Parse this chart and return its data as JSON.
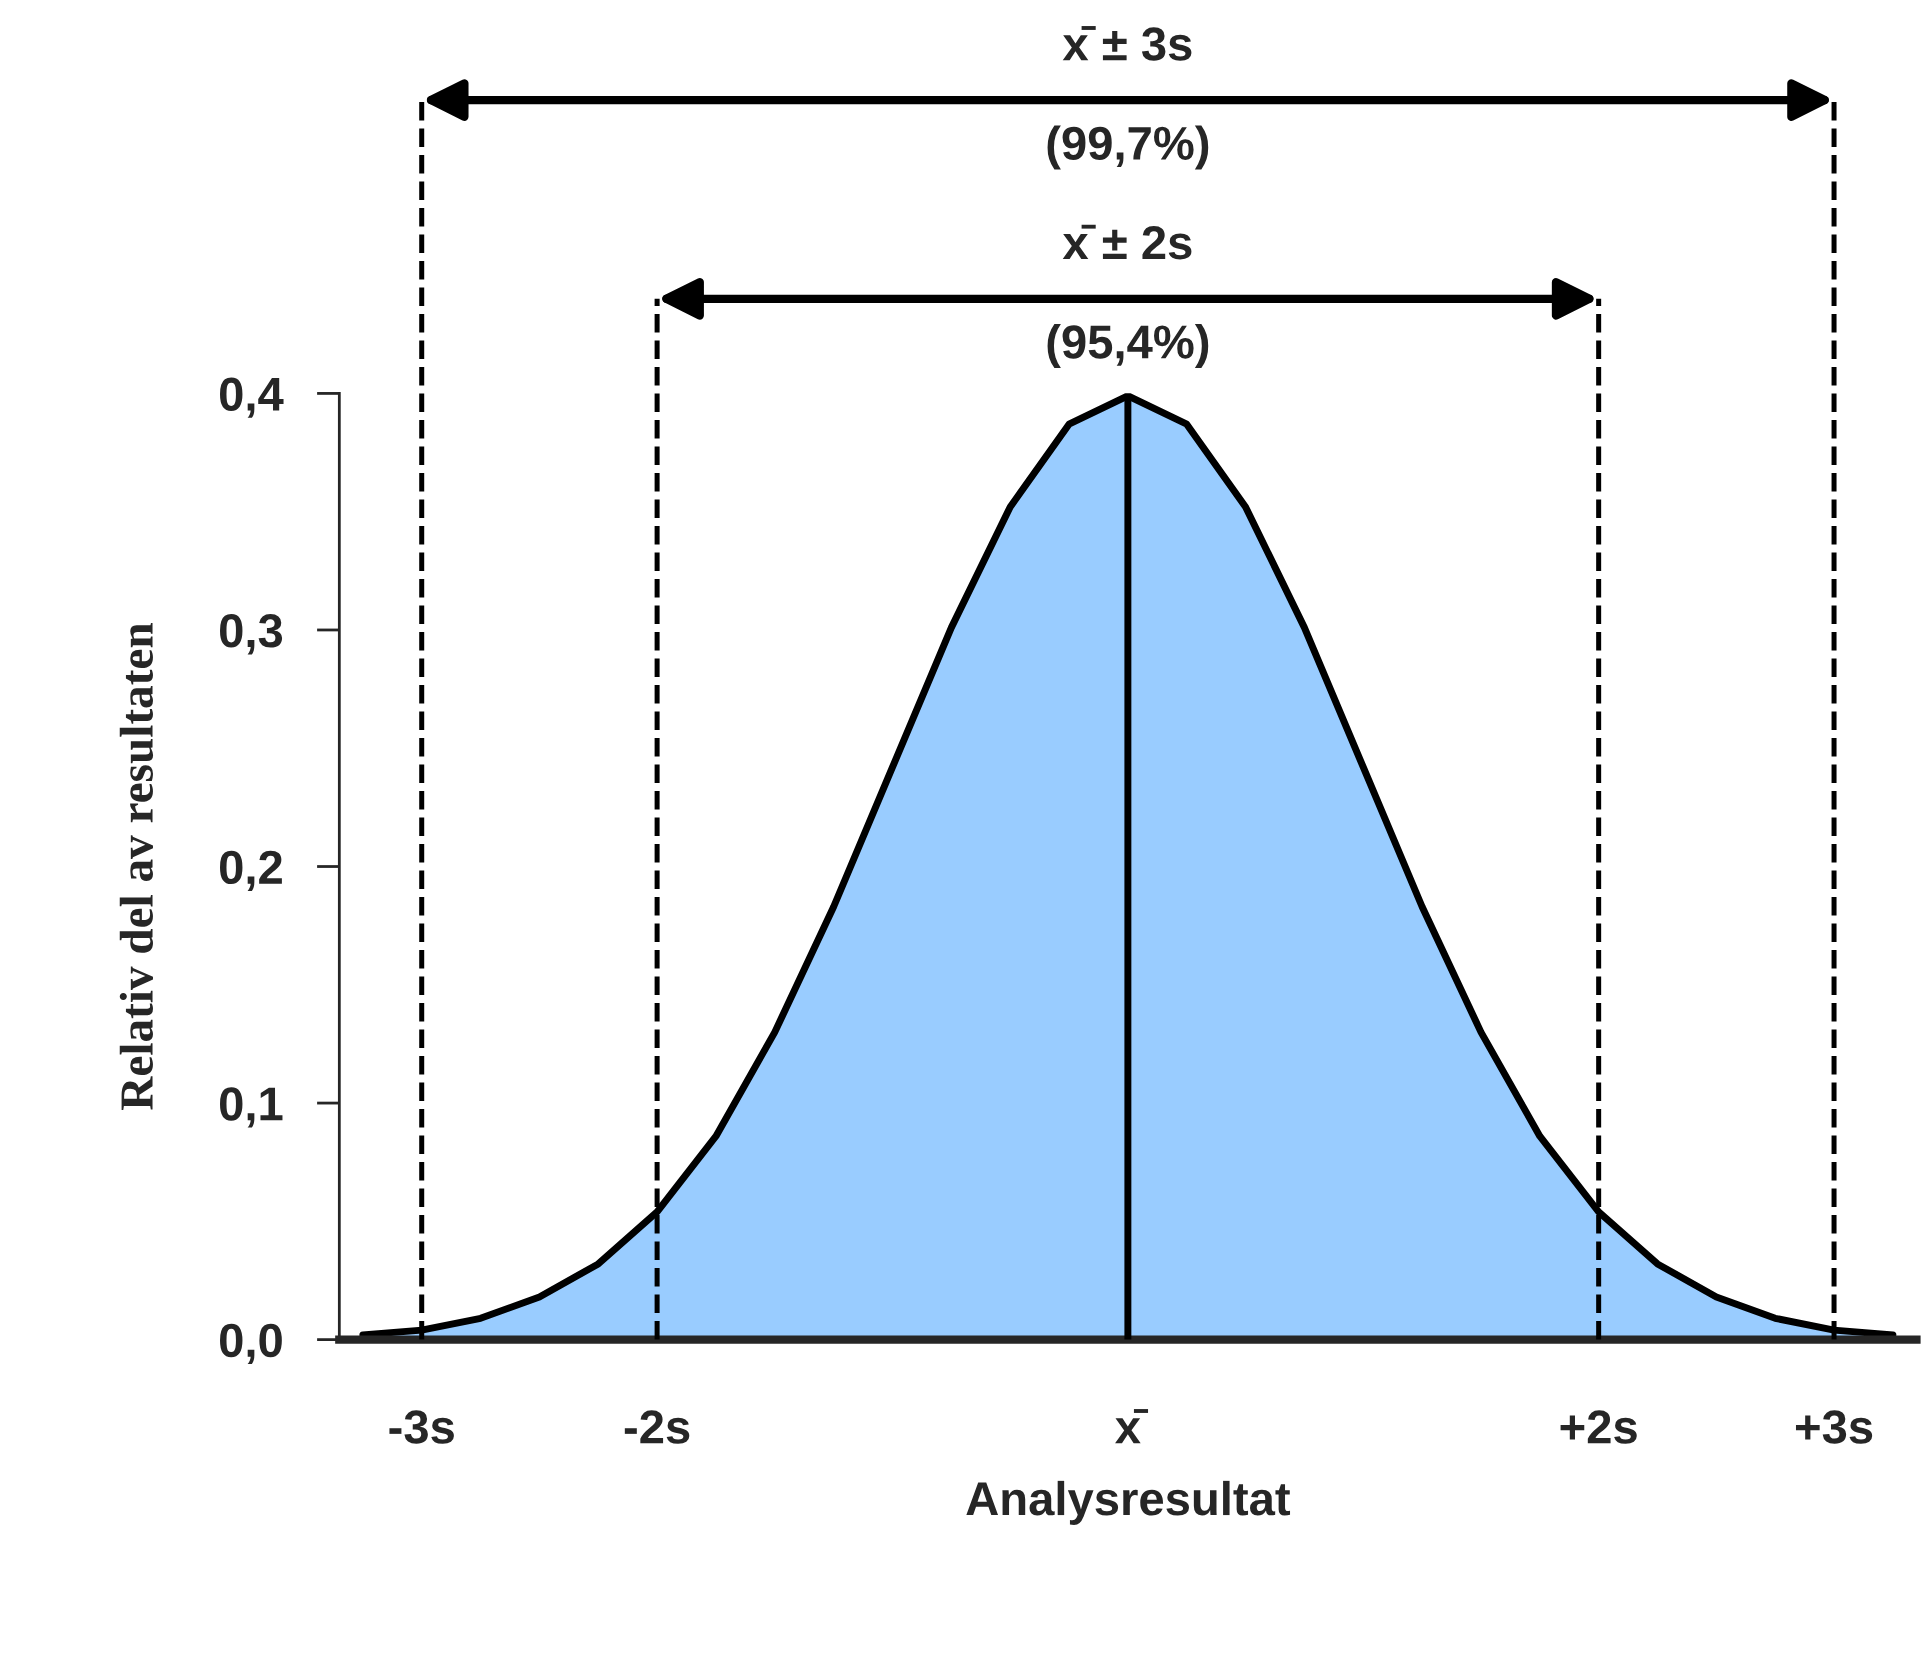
{
  "chart_data": {
    "type": "area",
    "xlabel": "Analysresultat",
    "ylabel": "Relativ del av resultaten",
    "x": [
      -3.25,
      -3.0,
      -2.75,
      -2.5,
      -2.25,
      -2.0,
      -1.75,
      -1.5,
      -1.25,
      -1.0,
      -0.75,
      -0.5,
      -0.25,
      0.0,
      0.25,
      0.5,
      0.75,
      1.0,
      1.25,
      1.5,
      1.75,
      2.0,
      2.25,
      2.5,
      2.75,
      3.0,
      3.25
    ],
    "series": [
      {
        "color": "#99ccff",
        "values": [
          0.002,
          0.004,
          0.009,
          0.018,
          0.032,
          0.054,
          0.086,
          0.13,
          0.183,
          0.242,
          0.301,
          0.352,
          0.387,
          0.399,
          0.387,
          0.352,
          0.301,
          0.242,
          0.183,
          0.13,
          0.086,
          0.054,
          0.032,
          0.018,
          0.009,
          0.004,
          0.002
        ]
      }
    ],
    "xlim": [
      -3.35,
      3.35
    ],
    "xticks": [
      {
        "value": -3,
        "label": "-3s"
      },
      {
        "value": -2,
        "label": "-2s"
      },
      {
        "value": 0,
        "label": "x̄"
      },
      {
        "value": 2,
        "label": "+2s"
      },
      {
        "value": 3,
        "label": "+3s"
      }
    ],
    "ylim": [
      0,
      0.4
    ],
    "yticks": [
      {
        "value": 0,
        "label": "0,0"
      },
      {
        "value": 0.1,
        "label": "0,1"
      },
      {
        "value": 0.2,
        "label": "0,2"
      },
      {
        "value": 0.3,
        "label": "0,3"
      },
      {
        "value": 0.4,
        "label": "0,4"
      }
    ],
    "ref_lines": [
      {
        "axis": "x",
        "value": -3,
        "line_style": "dashed"
      },
      {
        "axis": "x",
        "value": -2,
        "line_style": "dashed"
      },
      {
        "axis": "x",
        "value": 2,
        "line_style": "dashed"
      },
      {
        "axis": "x",
        "value": 3,
        "line_style": "dashed"
      },
      {
        "axis": "x",
        "value": 0,
        "line_style": "solid"
      }
    ],
    "annotations": [
      "x̄ ± 3s",
      "(99,7%)",
      "x̄ ± 2s",
      "(95,4%)"
    ],
    "grid": false
  }
}
